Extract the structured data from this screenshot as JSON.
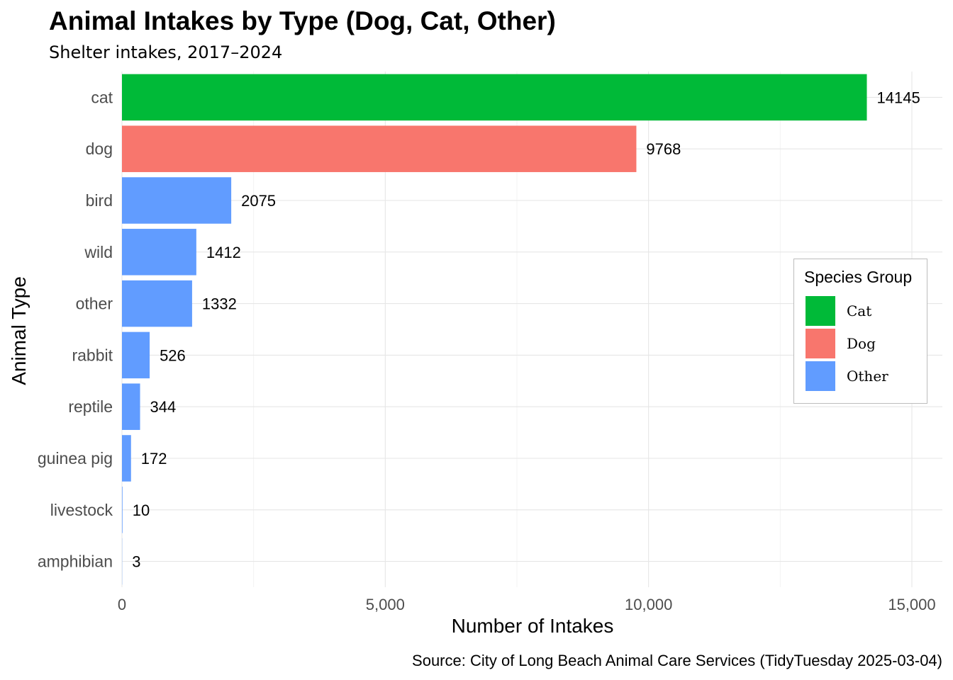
{
  "chart_data": {
    "type": "bar",
    "orientation": "horizontal",
    "title": "Animal Intakes by Type (Dog, Cat, Other)",
    "subtitle": "Shelter intakes, 2017–2024",
    "xlabel": "Number of Intakes",
    "ylabel": "Animal Type",
    "caption": "Source: City of Long Beach Animal Care Services (TidyTuesday 2025-03-04)",
    "xlim": [
      0,
      15500
    ],
    "x_ticks": [
      0,
      5000,
      10000,
      15000
    ],
    "x_tick_labels": [
      "0",
      "5,000",
      "10,000",
      "15,000"
    ],
    "grid": true,
    "categories": [
      "cat",
      "dog",
      "bird",
      "wild",
      "other",
      "rabbit",
      "reptile",
      "guinea pig",
      "livestock",
      "amphibian"
    ],
    "values": [
      14145,
      9768,
      2075,
      1412,
      1332,
      526,
      344,
      172,
      10,
      3
    ],
    "bar_labels": [
      "14145",
      "9768",
      "2075",
      "1412",
      "1332",
      "526",
      "344",
      "172",
      "10",
      "3"
    ],
    "groups": [
      "Cat",
      "Dog",
      "Other",
      "Other",
      "Other",
      "Other",
      "Other",
      "Other",
      "Other",
      "Other"
    ],
    "legend": {
      "title": "Species Group",
      "placement": "right",
      "entries": [
        {
          "label": "Cat",
          "color": "#00BA38"
        },
        {
          "label": "Dog",
          "color": "#F8766D"
        },
        {
          "label": "Other",
          "color": "#619CFF"
        }
      ]
    }
  }
}
